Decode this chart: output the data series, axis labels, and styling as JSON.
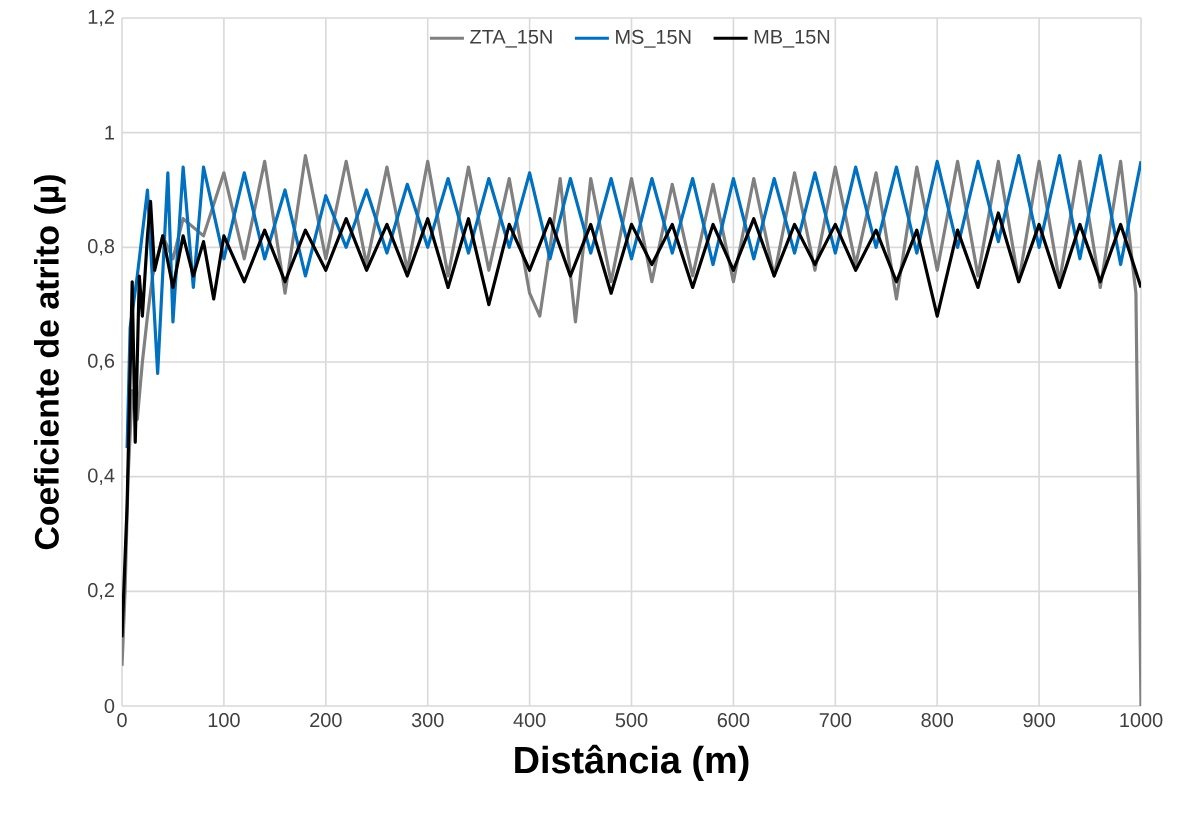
{
  "chart_data": {
    "type": "line",
    "xlabel": "Distância (m)",
    "ylabel": "Coeficiente de atrito (µ)",
    "xlim": [
      0,
      1000
    ],
    "ylim": [
      0,
      1.2
    ],
    "xticks": [
      0,
      100,
      200,
      300,
      400,
      500,
      600,
      700,
      800,
      900,
      1000
    ],
    "yticks": [
      0,
      {
        "value": 0.2,
        "label": "0,2"
      },
      {
        "value": 0.4,
        "label": "0,4"
      },
      {
        "value": 0.6,
        "label": "0,6"
      },
      {
        "value": 0.8,
        "label": "0,8"
      },
      1,
      {
        "value": 1.2,
        "label": "1,2"
      }
    ],
    "grid": true,
    "legend": "top",
    "marker": "none",
    "line_style": "solid",
    "series": [
      {
        "name": "ZTA_15N",
        "color": "#808080",
        "x": [
          0,
          3,
          6,
          10,
          15,
          20,
          25,
          30,
          40,
          50,
          60,
          80,
          100,
          120,
          140,
          160,
          180,
          200,
          220,
          240,
          260,
          280,
          300,
          320,
          340,
          360,
          380,
          400,
          410,
          430,
          445,
          460,
          480,
          500,
          520,
          540,
          560,
          580,
          600,
          620,
          640,
          660,
          680,
          700,
          720,
          740,
          760,
          780,
          800,
          820,
          840,
          860,
          880,
          900,
          920,
          940,
          960,
          980,
          995,
          1000
        ],
        "values": [
          0.07,
          0.2,
          0.4,
          0.55,
          0.5,
          0.6,
          0.68,
          0.75,
          0.82,
          0.78,
          0.85,
          0.82,
          0.93,
          0.78,
          0.95,
          0.72,
          0.96,
          0.78,
          0.95,
          0.77,
          0.94,
          0.76,
          0.95,
          0.75,
          0.94,
          0.76,
          0.92,
          0.72,
          0.68,
          0.92,
          0.67,
          0.92,
          0.74,
          0.92,
          0.74,
          0.91,
          0.75,
          0.91,
          0.74,
          0.92,
          0.75,
          0.93,
          0.76,
          0.94,
          0.77,
          0.93,
          0.71,
          0.94,
          0.76,
          0.95,
          0.75,
          0.95,
          0.74,
          0.95,
          0.74,
          0.95,
          0.73,
          0.95,
          0.72,
          0
        ]
      },
      {
        "name": "MS_15N",
        "color": "#0070c0",
        "x": [
          5,
          8,
          15,
          25,
          35,
          45,
          50,
          60,
          70,
          80,
          100,
          120,
          140,
          160,
          180,
          200,
          220,
          240,
          260,
          280,
          300,
          320,
          340,
          360,
          380,
          400,
          420,
          440,
          460,
          480,
          500,
          520,
          540,
          560,
          580,
          600,
          620,
          640,
          660,
          680,
          700,
          720,
          740,
          760,
          780,
          800,
          820,
          840,
          860,
          880,
          900,
          920,
          940,
          960,
          980,
          1000
        ],
        "values": [
          0.45,
          0.66,
          0.75,
          0.9,
          0.58,
          0.93,
          0.67,
          0.94,
          0.73,
          0.94,
          0.78,
          0.93,
          0.78,
          0.9,
          0.75,
          0.89,
          0.8,
          0.9,
          0.79,
          0.91,
          0.8,
          0.92,
          0.79,
          0.92,
          0.8,
          0.93,
          0.78,
          0.92,
          0.79,
          0.92,
          0.78,
          0.92,
          0.79,
          0.92,
          0.77,
          0.92,
          0.78,
          0.92,
          0.79,
          0.93,
          0.79,
          0.94,
          0.8,
          0.94,
          0.79,
          0.95,
          0.8,
          0.95,
          0.81,
          0.96,
          0.8,
          0.96,
          0.78,
          0.96,
          0.77,
          0.95
        ]
      },
      {
        "name": "MB_15N",
        "color": "#000000",
        "x": [
          0,
          5,
          10,
          13,
          17,
          20,
          25,
          28,
          32,
          40,
          50,
          60,
          70,
          80,
          90,
          100,
          120,
          140,
          160,
          180,
          200,
          220,
          240,
          260,
          280,
          300,
          320,
          340,
          360,
          380,
          400,
          420,
          440,
          460,
          480,
          500,
          520,
          540,
          560,
          580,
          600,
          620,
          640,
          660,
          680,
          700,
          720,
          740,
          760,
          780,
          800,
          820,
          840,
          860,
          880,
          900,
          920,
          940,
          960,
          980,
          1000
        ],
        "values": [
          0.12,
          0.35,
          0.74,
          0.46,
          0.75,
          0.68,
          0.82,
          0.88,
          0.76,
          0.82,
          0.73,
          0.82,
          0.75,
          0.81,
          0.71,
          0.82,
          0.74,
          0.83,
          0.74,
          0.83,
          0.76,
          0.85,
          0.76,
          0.84,
          0.75,
          0.85,
          0.73,
          0.85,
          0.7,
          0.84,
          0.76,
          0.85,
          0.75,
          0.84,
          0.72,
          0.84,
          0.77,
          0.84,
          0.73,
          0.84,
          0.76,
          0.85,
          0.75,
          0.84,
          0.77,
          0.84,
          0.76,
          0.83,
          0.74,
          0.83,
          0.68,
          0.83,
          0.73,
          0.86,
          0.74,
          0.84,
          0.73,
          0.84,
          0.74,
          0.84,
          0.73
        ]
      }
    ]
  }
}
